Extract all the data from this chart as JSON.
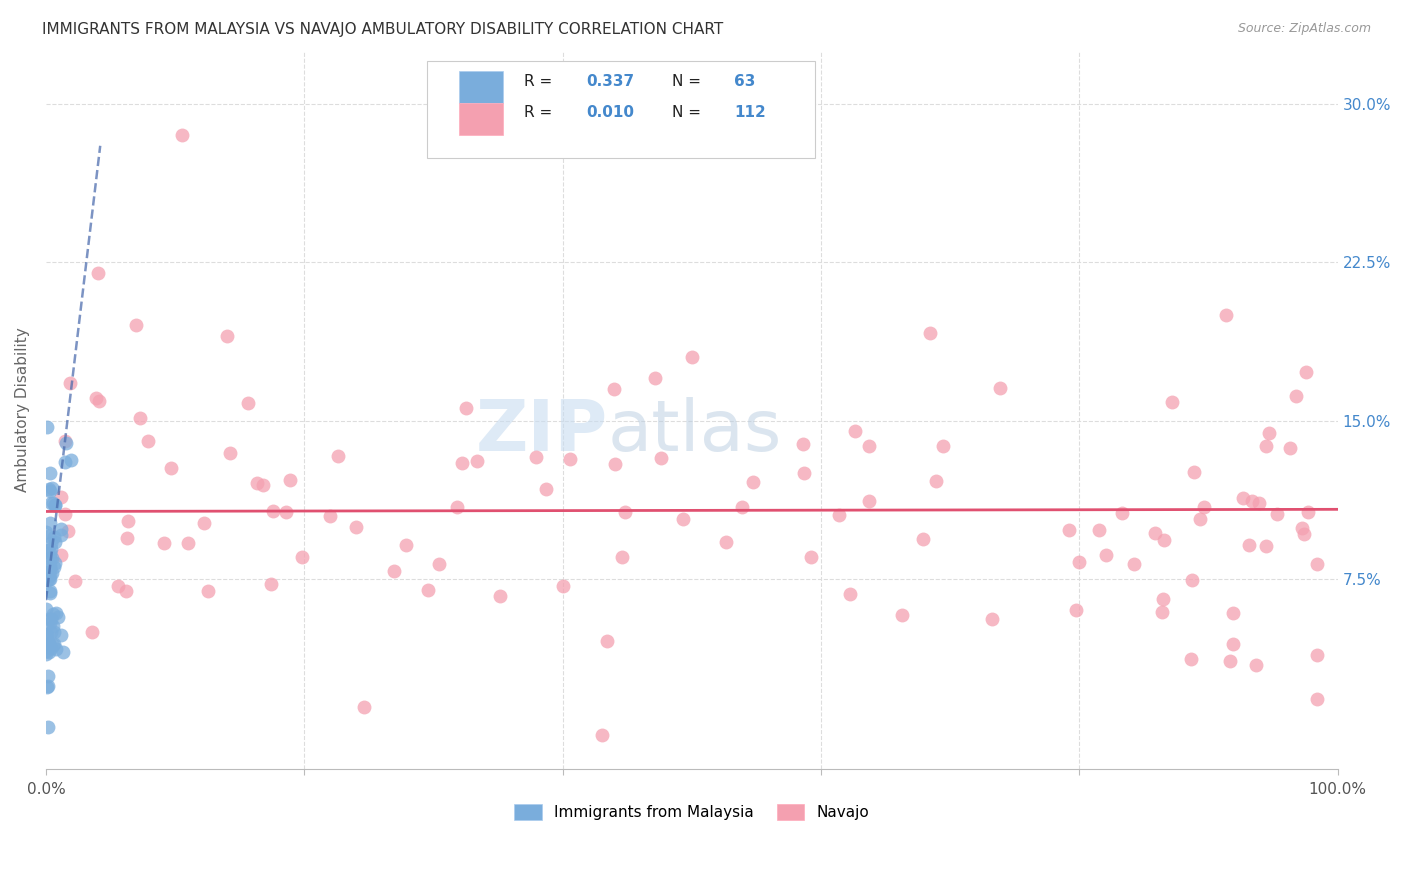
{
  "title": "IMMIGRANTS FROM MALAYSIA VS NAVAJO AMBULATORY DISABILITY CORRELATION CHART",
  "source": "Source: ZipAtlas.com",
  "ylabel": "Ambulatory Disability",
  "xlim": [
    0.0,
    1.0
  ],
  "ylim": [
    -0.015,
    0.325
  ],
  "ytick_vals": [
    0.075,
    0.15,
    0.225,
    0.3
  ],
  "ytick_labels": [
    "7.5%",
    "15.0%",
    "22.5%",
    "30.0%"
  ],
  "blue_R": 0.337,
  "blue_N": 63,
  "pink_R": 0.01,
  "pink_N": 112,
  "legend_label1": "Immigrants from Malaysia",
  "legend_label2": "Navajo",
  "blue_color": "#7AADDC",
  "pink_color": "#F4A0B0",
  "blue_line_color": "#4466AA",
  "pink_line_color": "#E05070",
  "title_color": "#333333",
  "source_color": "#999999",
  "tick_color_right": "#4488CC",
  "grid_color": "#DDDDDD",
  "background_color": "#FFFFFF"
}
